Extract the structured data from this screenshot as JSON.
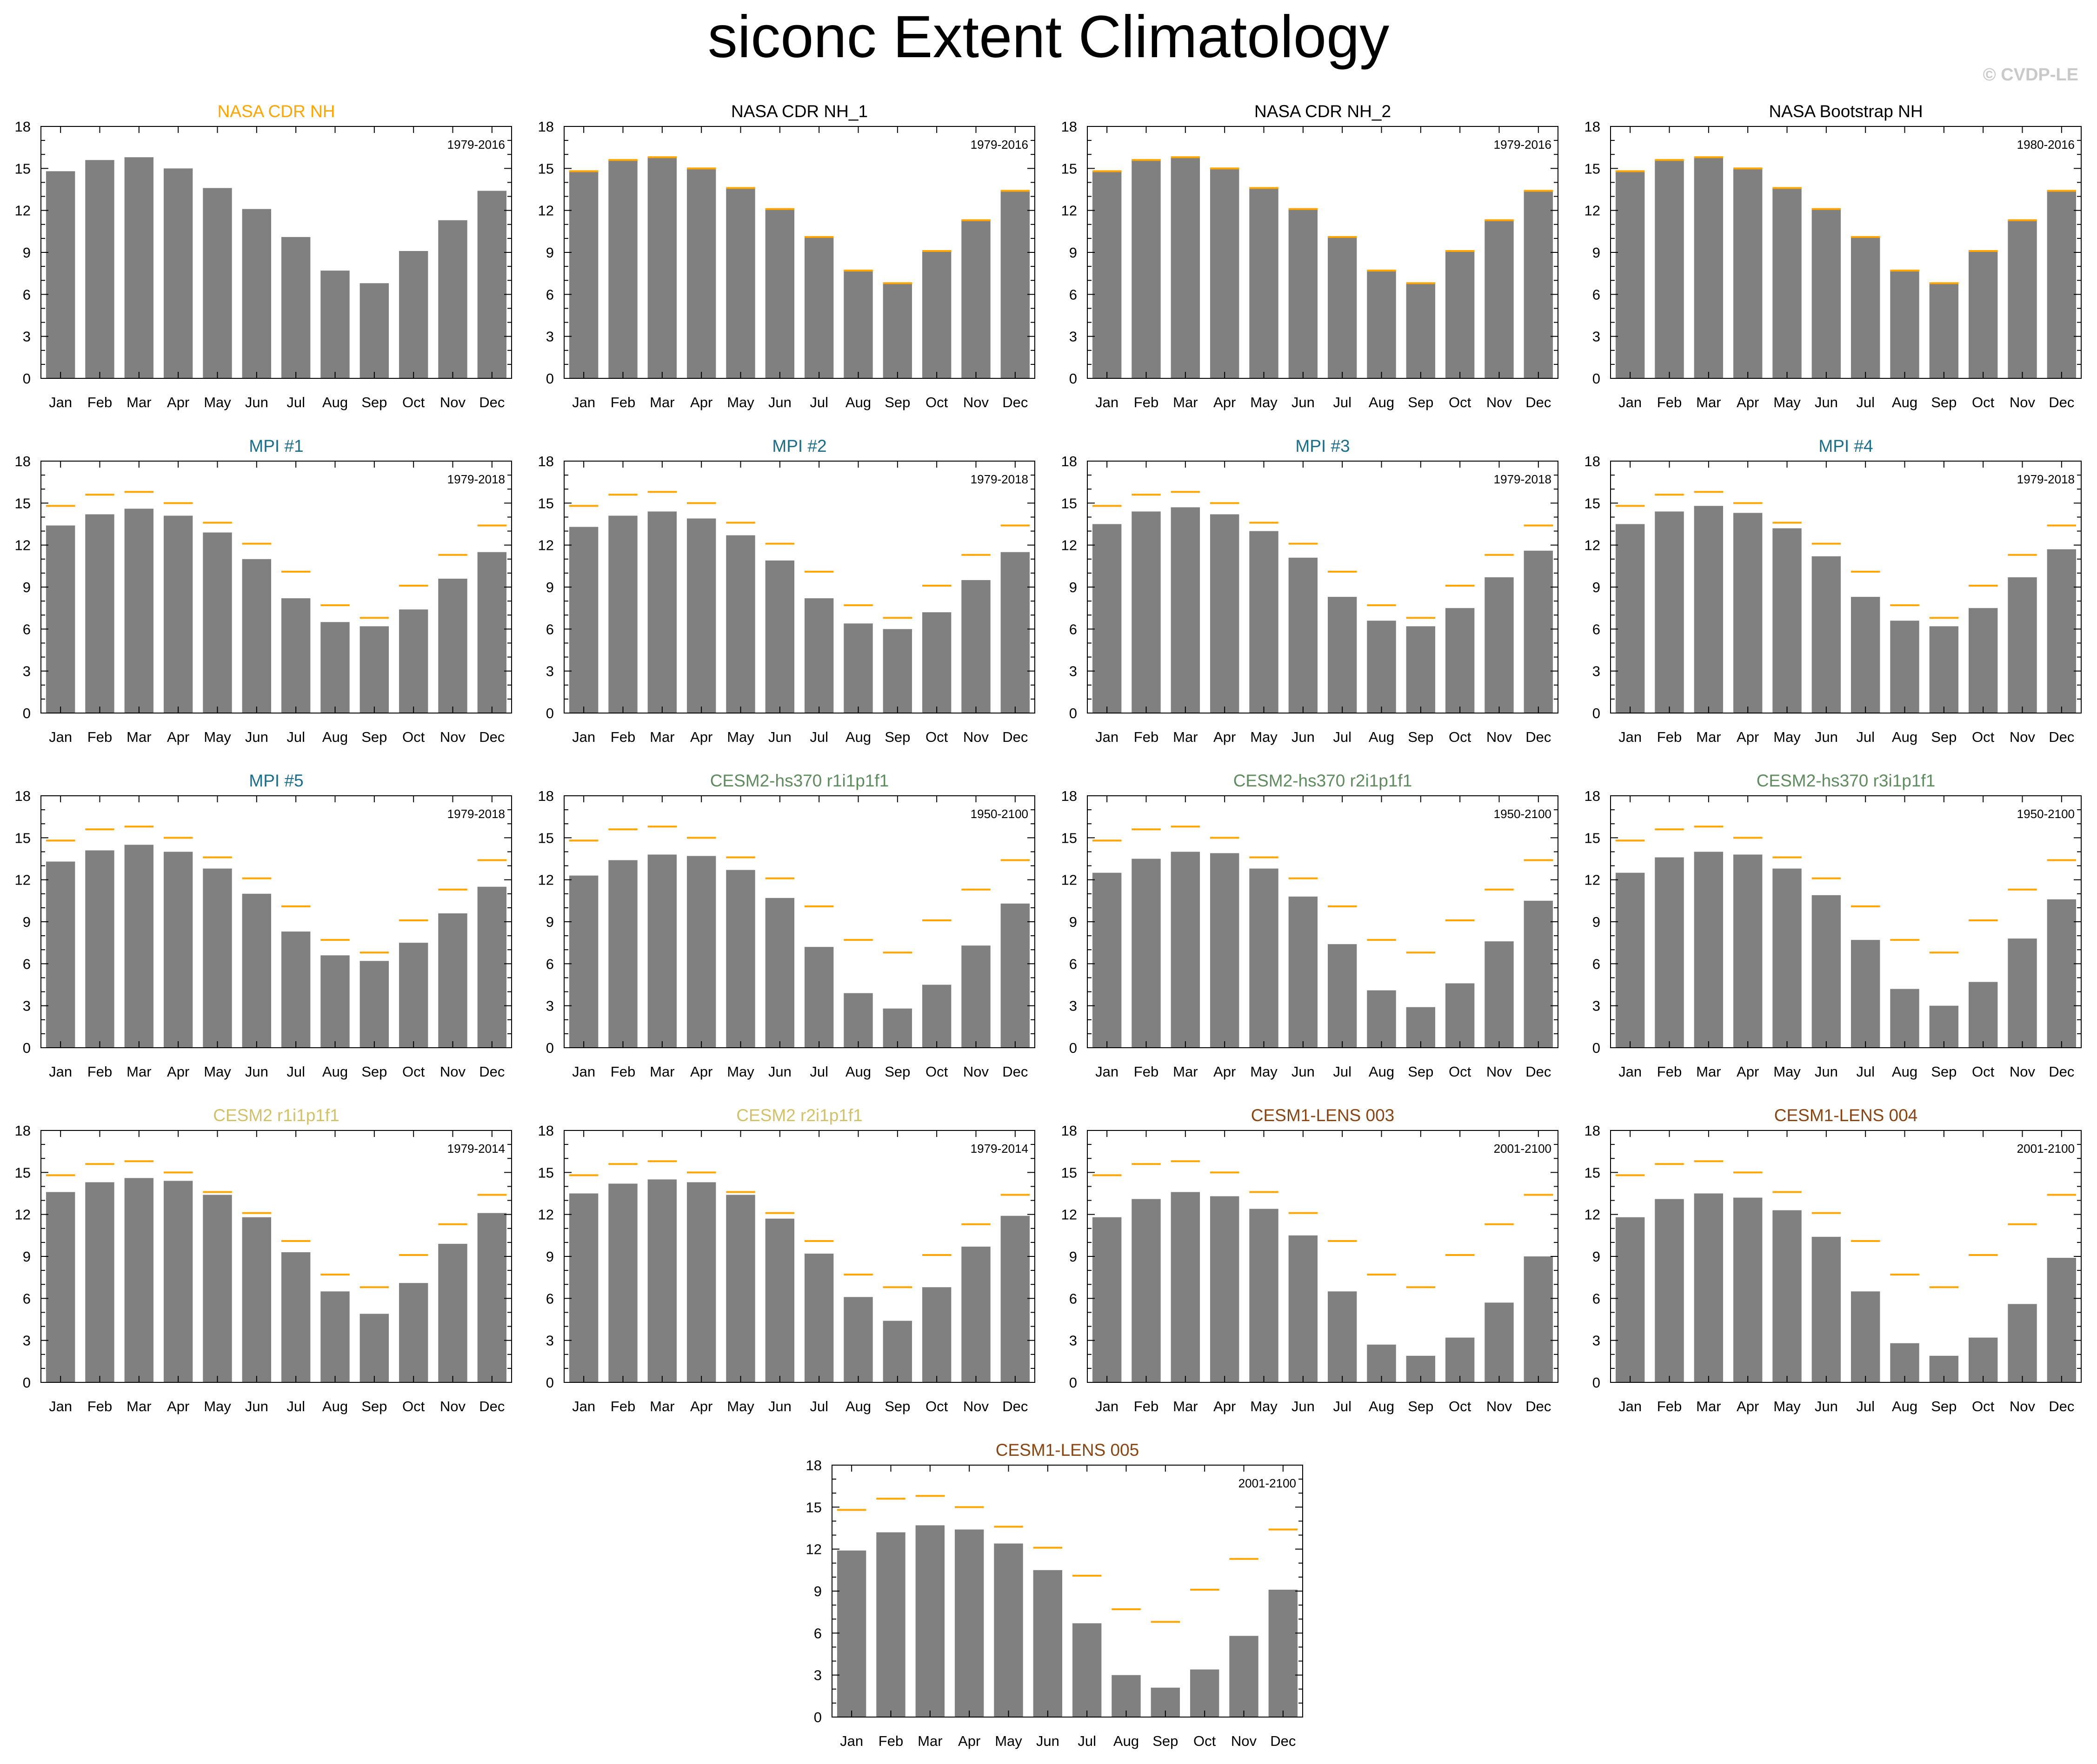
{
  "figure": {
    "title": "siconc Extent Climatology",
    "watermark": "© CVDP-LE"
  },
  "colors": {
    "bar": "#808080",
    "reference": "#FFA500",
    "obs_title": "#FFA500",
    "obs_copy_title": "#000000",
    "mpi_title": "#1A6E8C",
    "cesm2hs_title": "#5E8C5E",
    "cesm2_title": "#D2C16A",
    "lens_title": "#8B4513"
  },
  "chart_data": {
    "type": "bar",
    "categories": [
      "Jan",
      "Feb",
      "Mar",
      "Apr",
      "May",
      "Jun",
      "Jul",
      "Aug",
      "Sep",
      "Oct",
      "Nov",
      "Dec"
    ],
    "ylim": [
      0,
      18
    ],
    "yticks": [
      "0",
      "3",
      "6",
      "9",
      "12",
      "15",
      "18"
    ],
    "reference_series": {
      "name": "NASA CDR NH",
      "values": [
        14.8,
        15.6,
        15.8,
        15.0,
        13.6,
        12.1,
        10.1,
        7.7,
        6.8,
        9.1,
        11.3,
        13.4
      ]
    },
    "panels": [
      {
        "title": "NASA CDR NH",
        "title_color": "#FFA500",
        "period": "1979-2016",
        "show_reference": false,
        "values": [
          14.8,
          15.6,
          15.8,
          15.0,
          13.6,
          12.1,
          10.1,
          7.7,
          6.8,
          9.1,
          11.3,
          13.4
        ]
      },
      {
        "title": "NASA CDR NH_1",
        "title_color": "#000000",
        "period": "1979-2016",
        "show_reference": true,
        "values": [
          14.8,
          15.6,
          15.8,
          15.0,
          13.6,
          12.1,
          10.1,
          7.7,
          6.8,
          9.1,
          11.3,
          13.4
        ]
      },
      {
        "title": "NASA CDR NH_2",
        "title_color": "#000000",
        "period": "1979-2016",
        "show_reference": true,
        "values": [
          14.8,
          15.6,
          15.8,
          15.0,
          13.6,
          12.1,
          10.1,
          7.7,
          6.8,
          9.1,
          11.3,
          13.4
        ]
      },
      {
        "title": "NASA Bootstrap NH",
        "title_color": "#000000",
        "period": "1980-2016",
        "show_reference": true,
        "values": [
          14.8,
          15.6,
          15.8,
          15.0,
          13.6,
          12.1,
          10.1,
          7.7,
          6.8,
          9.1,
          11.3,
          13.4
        ]
      },
      {
        "title": "MPI #1",
        "title_color": "#1A6E8C",
        "period": "1979-2018",
        "show_reference": true,
        "values": [
          13.4,
          14.2,
          14.6,
          14.1,
          12.9,
          11.0,
          8.2,
          6.5,
          6.2,
          7.4,
          9.6,
          11.5
        ]
      },
      {
        "title": "MPI #2",
        "title_color": "#1A6E8C",
        "period": "1979-2018",
        "show_reference": true,
        "values": [
          13.3,
          14.1,
          14.4,
          13.9,
          12.7,
          10.9,
          8.2,
          6.4,
          6.0,
          7.2,
          9.5,
          11.5
        ]
      },
      {
        "title": "MPI #3",
        "title_color": "#1A6E8C",
        "period": "1979-2018",
        "show_reference": true,
        "values": [
          13.5,
          14.4,
          14.7,
          14.2,
          13.0,
          11.1,
          8.3,
          6.6,
          6.2,
          7.5,
          9.7,
          11.6
        ]
      },
      {
        "title": "MPI #4",
        "title_color": "#1A6E8C",
        "period": "1979-2018",
        "show_reference": true,
        "values": [
          13.5,
          14.4,
          14.8,
          14.3,
          13.2,
          11.2,
          8.3,
          6.6,
          6.2,
          7.5,
          9.7,
          11.7
        ]
      },
      {
        "title": "MPI #5",
        "title_color": "#1A6E8C",
        "period": "1979-2018",
        "show_reference": true,
        "values": [
          13.3,
          14.1,
          14.5,
          14.0,
          12.8,
          11.0,
          8.3,
          6.6,
          6.2,
          7.5,
          9.6,
          11.5
        ]
      },
      {
        "title": "CESM2-hs370 r1i1p1f1",
        "title_color": "#5E8C5E",
        "period": "1950-2100",
        "show_reference": true,
        "values": [
          12.3,
          13.4,
          13.8,
          13.7,
          12.7,
          10.7,
          7.2,
          3.9,
          2.8,
          4.5,
          7.3,
          10.3
        ]
      },
      {
        "title": "CESM2-hs370 r2i1p1f1",
        "title_color": "#5E8C5E",
        "period": "1950-2100",
        "show_reference": true,
        "values": [
          12.5,
          13.5,
          14.0,
          13.9,
          12.8,
          10.8,
          7.4,
          4.1,
          2.9,
          4.6,
          7.6,
          10.5
        ]
      },
      {
        "title": "CESM2-hs370 r3i1p1f1",
        "title_color": "#5E8C5E",
        "period": "1950-2100",
        "show_reference": true,
        "values": [
          12.5,
          13.6,
          14.0,
          13.8,
          12.8,
          10.9,
          7.7,
          4.2,
          3.0,
          4.7,
          7.8,
          10.6
        ]
      },
      {
        "title": "CESM2 r1i1p1f1",
        "title_color": "#D2C16A",
        "period": "1979-2014",
        "show_reference": true,
        "values": [
          13.6,
          14.3,
          14.6,
          14.4,
          13.4,
          11.8,
          9.3,
          6.5,
          4.9,
          7.1,
          9.9,
          12.1
        ]
      },
      {
        "title": "CESM2 r2i1p1f1",
        "title_color": "#D2C16A",
        "period": "1979-2014",
        "show_reference": true,
        "values": [
          13.5,
          14.2,
          14.5,
          14.3,
          13.4,
          11.7,
          9.2,
          6.1,
          4.4,
          6.8,
          9.7,
          11.9
        ]
      },
      {
        "title": "CESM1-LENS 003",
        "title_color": "#8B4513",
        "period": "2001-2100",
        "show_reference": true,
        "values": [
          11.8,
          13.1,
          13.6,
          13.3,
          12.4,
          10.5,
          6.5,
          2.7,
          1.9,
          3.2,
          5.7,
          9.0
        ]
      },
      {
        "title": "CESM1-LENS 004",
        "title_color": "#8B4513",
        "period": "2001-2100",
        "show_reference": true,
        "values": [
          11.8,
          13.1,
          13.5,
          13.2,
          12.3,
          10.4,
          6.5,
          2.8,
          1.9,
          3.2,
          5.6,
          8.9
        ]
      },
      {
        "title": "CESM1-LENS 005",
        "title_color": "#8B4513",
        "period": "2001-2100",
        "show_reference": true,
        "values": [
          11.9,
          13.2,
          13.7,
          13.4,
          12.4,
          10.5,
          6.7,
          3.0,
          2.1,
          3.4,
          5.8,
          9.1
        ]
      }
    ]
  }
}
